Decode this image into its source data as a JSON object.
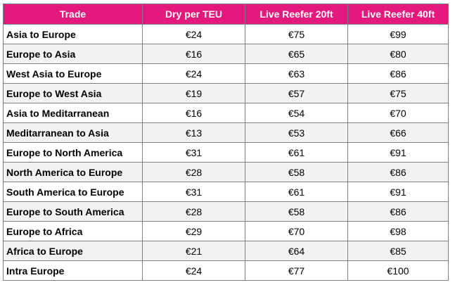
{
  "table": {
    "headers": [
      "Trade",
      "Dry per TEU",
      "Live Reefer 20ft",
      "Live Reefer 40ft"
    ],
    "rows": [
      [
        "Asia to Europe",
        "€24",
        "€75",
        "€99"
      ],
      [
        "Europe to Asia",
        "€16",
        "€65",
        "€80"
      ],
      [
        "West Asia to Europe",
        "€24",
        "€63",
        "€86"
      ],
      [
        "Europe to West Asia",
        "€19",
        "€57",
        "€75"
      ],
      [
        "Asia to Meditarranean",
        "€16",
        "€54",
        "€70"
      ],
      [
        "Meditarranean to Asia",
        "€13",
        "€53",
        "€66"
      ],
      [
        "Europe to North America",
        "€31",
        "€61",
        "€91"
      ],
      [
        "North America to Europe",
        "€28",
        "€58",
        "€86"
      ],
      [
        "South America to Europe",
        "€31",
        "€61",
        "€91"
      ],
      [
        "Europe to South America",
        "€28",
        "€58",
        "€86"
      ],
      [
        "Europe to Africa",
        "€29",
        "€70",
        "€98"
      ],
      [
        "Africa to Europe",
        "€21",
        "€64",
        "€85"
      ],
      [
        "Intra Europe",
        "€24",
        "€77",
        "€100"
      ]
    ]
  },
  "colors": {
    "header_bg": "#e5187d",
    "header_text": "#ffffff",
    "row_alt_bg": "#f2f2f2"
  }
}
